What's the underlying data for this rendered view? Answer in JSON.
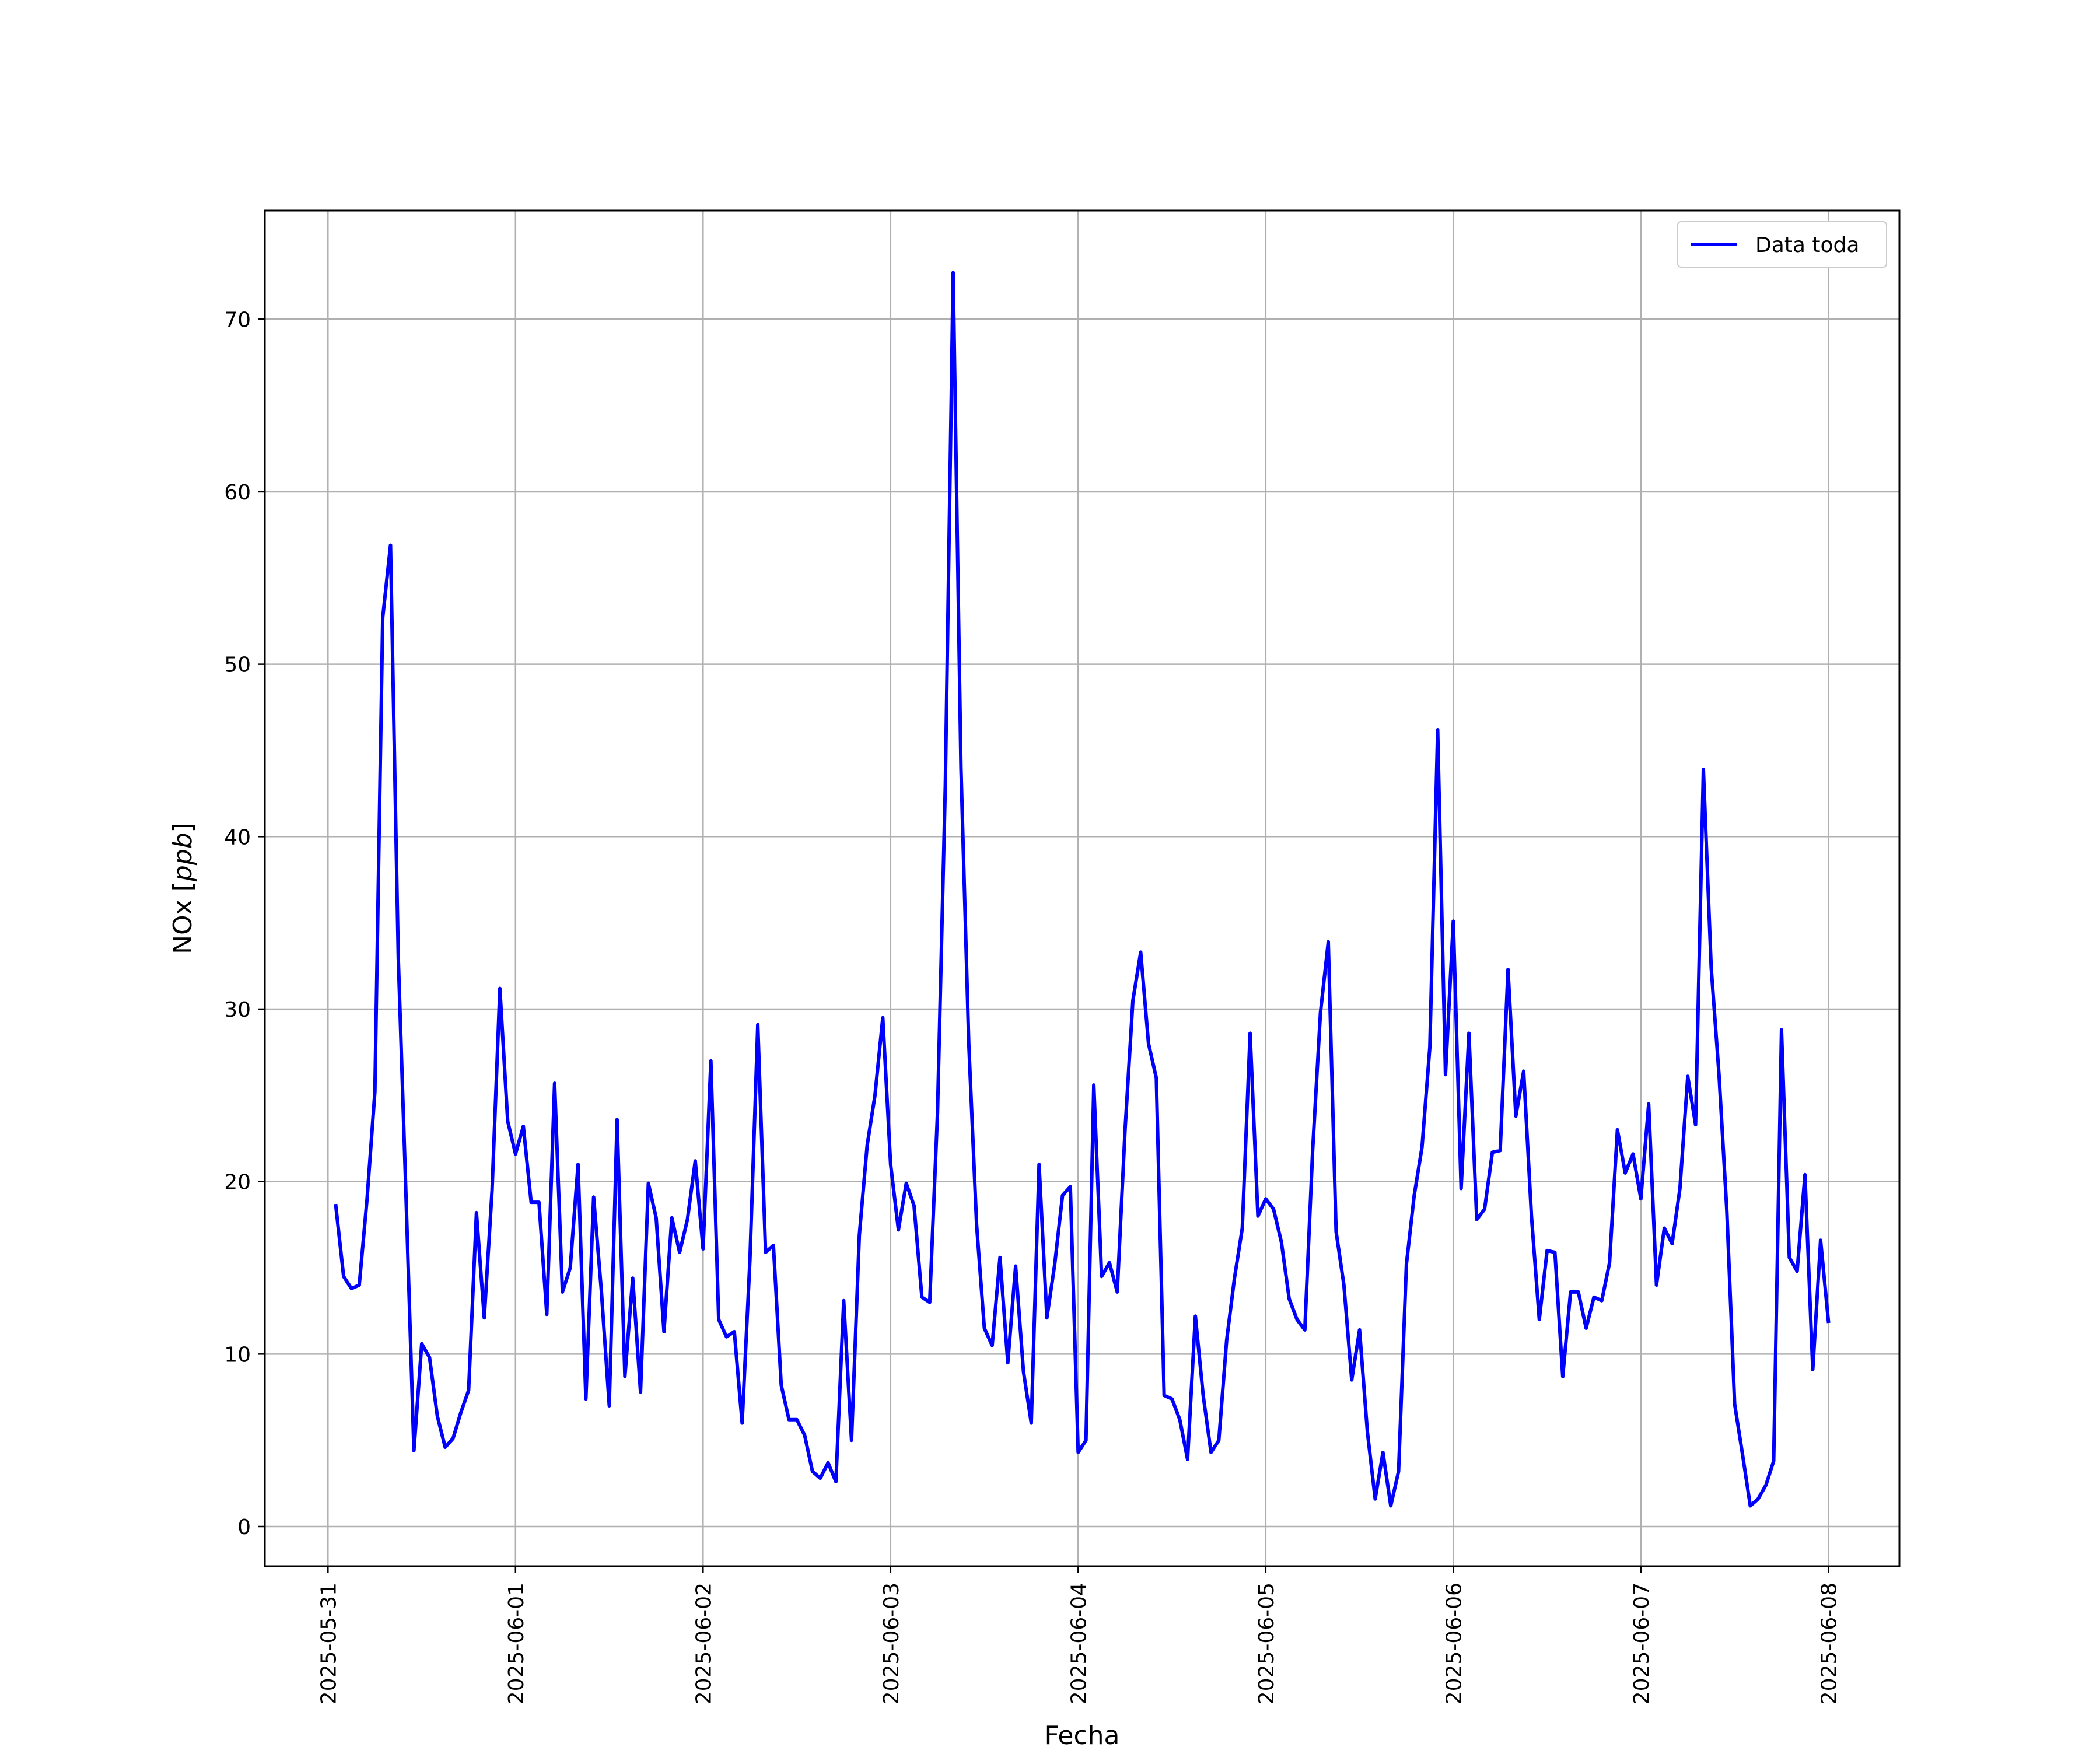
{
  "chart_data": {
    "type": "line",
    "title": "",
    "xlabel": "Fecha",
    "ylabel": "NOx [ppb]",
    "ylabel_text": "NOx ",
    "ylabel_unit": "ppb",
    "ylim": [
      -2.3,
      76.3
    ],
    "xlim": [
      "2025-05-30T15:55",
      "2025-06-08T09:05"
    ],
    "x_ticks": [
      "2025-05-31",
      "2025-06-01",
      "2025-06-02",
      "2025-06-03",
      "2025-06-04",
      "2025-06-05",
      "2025-06-06",
      "2025-06-07",
      "2025-06-08"
    ],
    "y_ticks": [
      0,
      10,
      20,
      30,
      40,
      50,
      60,
      70
    ],
    "grid": true,
    "legend_position": "top-right",
    "x_units": "date",
    "series": [
      {
        "name": "Data toda",
        "color": "#0000ff",
        "x": [
          "2025-05-31T01:00",
          "2025-05-31T02:00",
          "2025-05-31T03:00",
          "2025-05-31T04:00",
          "2025-05-31T05:00",
          "2025-05-31T06:00",
          "2025-05-31T07:00",
          "2025-05-31T08:00",
          "2025-05-31T09:00",
          "2025-05-31T10:00",
          "2025-05-31T11:00",
          "2025-05-31T12:00",
          "2025-05-31T13:00",
          "2025-05-31T14:00",
          "2025-05-31T15:00",
          "2025-05-31T16:00",
          "2025-05-31T17:00",
          "2025-05-31T18:00",
          "2025-05-31T19:00",
          "2025-05-31T20:00",
          "2025-05-31T21:00",
          "2025-05-31T22:00",
          "2025-05-31T23:00",
          "2025-06-01T00:00",
          "2025-06-01T01:00",
          "2025-06-01T02:00",
          "2025-06-01T03:00",
          "2025-06-01T04:00",
          "2025-06-01T05:00",
          "2025-06-01T06:00",
          "2025-06-01T07:00",
          "2025-06-01T08:00",
          "2025-06-01T09:00",
          "2025-06-01T10:00",
          "2025-06-01T11:00",
          "2025-06-01T12:00",
          "2025-06-01T13:00",
          "2025-06-01T14:00",
          "2025-06-01T15:00",
          "2025-06-01T16:00",
          "2025-06-01T17:00",
          "2025-06-01T18:00",
          "2025-06-01T19:00",
          "2025-06-01T20:00",
          "2025-06-01T21:00",
          "2025-06-01T22:00",
          "2025-06-01T23:00",
          "2025-06-02T00:00",
          "2025-06-02T01:00",
          "2025-06-02T02:00",
          "2025-06-02T03:00",
          "2025-06-02T04:00",
          "2025-06-02T05:00",
          "2025-06-02T06:00",
          "2025-06-02T07:00",
          "2025-06-02T08:00",
          "2025-06-02T09:00",
          "2025-06-02T10:00",
          "2025-06-02T11:00",
          "2025-06-02T12:00",
          "2025-06-02T13:00",
          "2025-06-02T14:00",
          "2025-06-02T15:00",
          "2025-06-02T16:00",
          "2025-06-02T17:00",
          "2025-06-02T18:00",
          "2025-06-02T19:00",
          "2025-06-02T20:00",
          "2025-06-02T21:00",
          "2025-06-02T22:00",
          "2025-06-02T23:00",
          "2025-06-03T00:00",
          "2025-06-03T01:00",
          "2025-06-03T02:00",
          "2025-06-03T03:00",
          "2025-06-03T04:00",
          "2025-06-03T05:00",
          "2025-06-03T06:00",
          "2025-06-03T07:00",
          "2025-06-03T08:00",
          "2025-06-03T09:00",
          "2025-06-03T10:00",
          "2025-06-03T11:00",
          "2025-06-03T12:00",
          "2025-06-03T13:00",
          "2025-06-03T14:00",
          "2025-06-03T15:00",
          "2025-06-03T16:00",
          "2025-06-03T17:00",
          "2025-06-03T18:00",
          "2025-06-03T19:00",
          "2025-06-03T20:00",
          "2025-06-03T21:00",
          "2025-06-03T22:00",
          "2025-06-03T23:00",
          "2025-06-04T00:00",
          "2025-06-04T01:00",
          "2025-06-04T02:00",
          "2025-06-04T03:00",
          "2025-06-04T04:00",
          "2025-06-04T05:00",
          "2025-06-04T06:00",
          "2025-06-04T07:00",
          "2025-06-04T08:00",
          "2025-06-04T09:00",
          "2025-06-04T10:00",
          "2025-06-04T11:00",
          "2025-06-04T12:00",
          "2025-06-04T13:00",
          "2025-06-04T14:00",
          "2025-06-04T15:00",
          "2025-06-04T16:00",
          "2025-06-04T17:00",
          "2025-06-04T18:00",
          "2025-06-04T19:00",
          "2025-06-04T20:00",
          "2025-06-04T21:00",
          "2025-06-04T22:00",
          "2025-06-04T23:00",
          "2025-06-05T00:00",
          "2025-06-05T01:00",
          "2025-06-05T02:00",
          "2025-06-05T03:00",
          "2025-06-05T04:00",
          "2025-06-05T05:00",
          "2025-06-05T06:00",
          "2025-06-05T07:00",
          "2025-06-05T08:00",
          "2025-06-05T09:00",
          "2025-06-05T10:00",
          "2025-06-05T11:00",
          "2025-06-05T12:00",
          "2025-06-05T13:00",
          "2025-06-05T14:00",
          "2025-06-05T15:00",
          "2025-06-05T16:00",
          "2025-06-05T17:00",
          "2025-06-05T18:00",
          "2025-06-05T19:00",
          "2025-06-05T20:00",
          "2025-06-05T21:00",
          "2025-06-05T22:00",
          "2025-06-05T23:00",
          "2025-06-06T00:00",
          "2025-06-06T01:00",
          "2025-06-06T02:00",
          "2025-06-06T03:00",
          "2025-06-06T04:00",
          "2025-06-06T05:00",
          "2025-06-06T06:00",
          "2025-06-06T07:00",
          "2025-06-06T08:00",
          "2025-06-06T09:00",
          "2025-06-06T10:00",
          "2025-06-06T11:00",
          "2025-06-06T12:00",
          "2025-06-06T13:00",
          "2025-06-06T14:00",
          "2025-06-06T15:00",
          "2025-06-06T16:00",
          "2025-06-06T17:00",
          "2025-06-06T18:00",
          "2025-06-06T19:00",
          "2025-06-06T20:00",
          "2025-06-06T21:00",
          "2025-06-06T22:00",
          "2025-06-06T23:00",
          "2025-06-07T00:00",
          "2025-06-07T01:00",
          "2025-06-07T02:00",
          "2025-06-07T03:00",
          "2025-06-07T04:00",
          "2025-06-07T05:00",
          "2025-06-07T06:00",
          "2025-06-07T07:00",
          "2025-06-07T08:00",
          "2025-06-07T09:00",
          "2025-06-07T10:00",
          "2025-06-07T11:00",
          "2025-06-07T12:00",
          "2025-06-07T13:00",
          "2025-06-07T14:00",
          "2025-06-07T15:00",
          "2025-06-07T16:00",
          "2025-06-07T17:00",
          "2025-06-07T18:00",
          "2025-06-07T19:00",
          "2025-06-07T20:00",
          "2025-06-07T21:00",
          "2025-06-07T22:00",
          "2025-06-07T23:00",
          "2025-06-08T00:00"
        ],
        "values": [
          18.6,
          14.5,
          13.8,
          14.0,
          19.0,
          25.2,
          52.7,
          56.9,
          33.0,
          19.0,
          4.4,
          10.6,
          9.8,
          6.4,
          4.6,
          5.1,
          6.6,
          7.9,
          18.2,
          12.1,
          19.5,
          31.2,
          23.5,
          21.6,
          23.2,
          18.8,
          18.8,
          12.3,
          25.7,
          13.6,
          15.0,
          21.0,
          7.4,
          19.1,
          13.6,
          7.0,
          23.6,
          8.7,
          14.4,
          7.8,
          19.9,
          17.9,
          11.3,
          17.9,
          15.9,
          17.8,
          21.2,
          16.1,
          27.0,
          12.0,
          11.0,
          11.3,
          6.0,
          15.5,
          29.1,
          15.9,
          16.3,
          8.2,
          6.2,
          6.2,
          5.3,
          3.2,
          2.8,
          3.7,
          2.6,
          13.1,
          5.0,
          16.9,
          22.1,
          25.0,
          29.5,
          21.0,
          17.2,
          19.9,
          18.6,
          13.3,
          13.0,
          24.0,
          43.0,
          72.7,
          44.0,
          28.0,
          17.5,
          11.5,
          10.5,
          15.6,
          9.5,
          15.1,
          9.0,
          6.0,
          21.0,
          12.1,
          15.2,
          19.2,
          19.7,
          4.3,
          5.0,
          25.6,
          14.5,
          15.3,
          13.6,
          23.0,
          30.5,
          33.3,
          28.0,
          26.0,
          7.6,
          7.4,
          6.2,
          3.9,
          12.2,
          7.6,
          4.3,
          5.0,
          10.8,
          14.4,
          17.3,
          28.6,
          18.0,
          19.0,
          18.4,
          16.5,
          13.2,
          12.0,
          11.4,
          21.8,
          29.8,
          33.9,
          17.1,
          14.0,
          8.5,
          11.4,
          5.5,
          1.6,
          4.3,
          1.2,
          3.2,
          15.2,
          19.2,
          22.0,
          27.8,
          46.2,
          26.2,
          35.1,
          19.6,
          28.6,
          17.8,
          18.4,
          21.7,
          21.8,
          32.3,
          23.8,
          26.4,
          18.0,
          12.0,
          16.0,
          15.9,
          8.7,
          13.6,
          13.6,
          11.5,
          13.3,
          13.1,
          15.3,
          23.0,
          20.5,
          21.6,
          19.0,
          24.5,
          14.0,
          17.3,
          16.4,
          19.6,
          26.1,
          23.3,
          43.9,
          32.4,
          26.2,
          18.3,
          7.1,
          4.2,
          1.2,
          1.6,
          2.4,
          3.8,
          28.8,
          15.6,
          14.8,
          20.4,
          9.1,
          16.6,
          11.9
        ]
      }
    ]
  }
}
